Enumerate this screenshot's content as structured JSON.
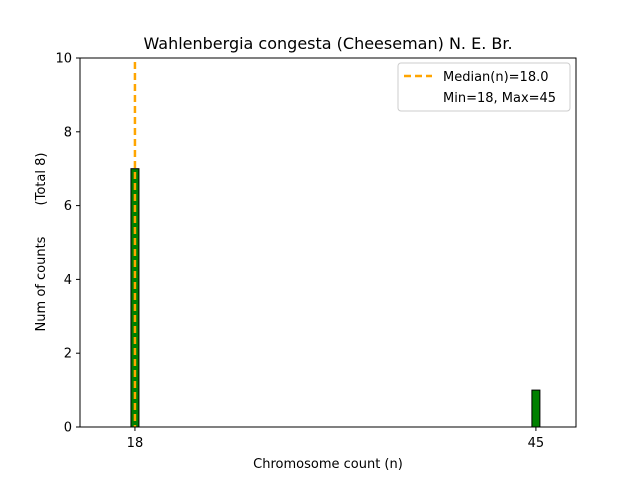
{
  "chart_data": {
    "type": "bar",
    "title": "Wahlenbergia congesta (Cheeseman) N. E. Br.",
    "xlabel": "Chromosome count (n)",
    "ylabel": "Num of counts",
    "ylabel_total": "(Total 8)",
    "categories": [
      "18",
      "45"
    ],
    "x": [
      18,
      45
    ],
    "values": [
      7,
      1
    ],
    "xlim": [
      14.3,
      47.7
    ],
    "ylim": [
      0,
      10
    ],
    "yticks": [
      0,
      2,
      4,
      6,
      8,
      10
    ],
    "median": 18.0,
    "bar_color": "#008000",
    "median_color": "#FFA500",
    "legend": {
      "placement": "top-right",
      "median_label": "Median(n)=18.0",
      "range_label": "Min=18, Max=45"
    }
  }
}
